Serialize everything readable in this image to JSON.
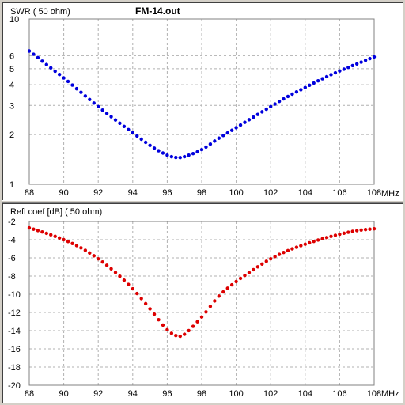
{
  "file_name": "FM-14.out",
  "chart_data": [
    {
      "type": "scatter",
      "title": "SWR ( 50 ohm)",
      "xlabel": "MHz",
      "ylabel": "",
      "xlim": [
        88,
        108
      ],
      "ylim": [
        1,
        10
      ],
      "y_scale": "log",
      "grid": true,
      "x_ticks": [
        88,
        90,
        92,
        94,
        96,
        98,
        100,
        102,
        104,
        106,
        108
      ],
      "x_tick_labels": [
        "88",
        "90",
        "92",
        "94",
        "96",
        "98",
        "100",
        "102",
        "104",
        "106",
        "108"
      ],
      "y_ticks": [
        1,
        2,
        3,
        4,
        5,
        6,
        10
      ],
      "y_tick_labels": [
        "1",
        "2",
        "3",
        "4",
        "5",
        "6",
        "10"
      ],
      "color": "#0000dd",
      "series": [
        {
          "x": [
            88,
            89,
            90,
            91,
            92,
            93,
            94,
            95,
            96,
            96.6,
            97,
            98,
            99,
            100,
            101,
            102,
            103,
            104,
            105,
            106,
            107,
            108
          ],
          "values": [
            6.4,
            5.3,
            4.4,
            3.6,
            2.95,
            2.45,
            2.05,
            1.72,
            1.5,
            1.45,
            1.47,
            1.62,
            1.9,
            2.2,
            2.55,
            2.95,
            3.4,
            3.85,
            4.35,
            4.85,
            5.35,
            5.9
          ]
        }
      ]
    },
    {
      "type": "scatter",
      "title": "Refl coef [dB] ( 50 ohm)",
      "xlabel": "MHz",
      "ylabel": "",
      "xlim": [
        88,
        108
      ],
      "ylim": [
        -20,
        -2
      ],
      "grid": true,
      "x_ticks": [
        88,
        90,
        92,
        94,
        96,
        98,
        100,
        102,
        104,
        106,
        108
      ],
      "x_tick_labels": [
        "88",
        "90",
        "92",
        "94",
        "96",
        "98",
        "100",
        "102",
        "104",
        "106",
        "108"
      ],
      "y_ticks": [
        -2,
        -4,
        -6,
        -8,
        -10,
        -12,
        -14,
        -16,
        -18,
        -20
      ],
      "y_tick_labels": [
        "-2",
        "-4",
        "-6",
        "-8",
        "-10",
        "-12",
        "-14",
        "-16",
        "-18",
        "-20"
      ],
      "color": "#dd0000",
      "series": [
        {
          "x": [
            88,
            89,
            90,
            91,
            92,
            93,
            94,
            95,
            96,
            96.6,
            97,
            98,
            99,
            100,
            101,
            102,
            103,
            104,
            105,
            106,
            107,
            108
          ],
          "values": [
            -2.7,
            -3.3,
            -4.0,
            -4.9,
            -6.1,
            -7.6,
            -9.4,
            -11.6,
            -13.9,
            -14.6,
            -14.4,
            -12.5,
            -10.2,
            -8.6,
            -7.3,
            -6.1,
            -5.2,
            -4.5,
            -3.9,
            -3.4,
            -3.0,
            -2.8
          ]
        }
      ]
    }
  ]
}
